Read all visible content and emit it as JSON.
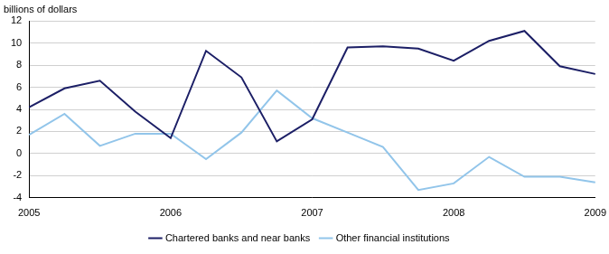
{
  "chart_data": {
    "type": "line",
    "y_label": "billions of dollars",
    "categories": [
      "2005",
      null,
      null,
      null,
      "2006",
      null,
      null,
      null,
      "2007",
      null,
      null,
      null,
      "2008",
      null,
      null,
      null,
      "2009"
    ],
    "series": [
      {
        "name": "Chartered banks and near banks",
        "color": "#1c1f66",
        "values": [
          4.2,
          5.9,
          6.6,
          3.8,
          1.4,
          9.3,
          6.9,
          1.1,
          3.1,
          9.6,
          9.7,
          9.5,
          8.4,
          10.2,
          11.1,
          7.9,
          7.2
        ]
      },
      {
        "name": "Other financial institutions",
        "color": "#92c5ea",
        "values": [
          1.7,
          3.6,
          0.7,
          1.8,
          1.8,
          -0.5,
          1.9,
          5.7,
          3.2,
          1.9,
          0.6,
          -3.3,
          -2.7,
          -0.3,
          -2.1,
          -2.1,
          -2.6
        ]
      }
    ],
    "ylim": [
      -4,
      12
    ],
    "yticks": [
      -4,
      -2,
      0,
      2,
      4,
      6,
      8,
      10,
      12
    ],
    "grid": true,
    "legend": "bottom"
  }
}
